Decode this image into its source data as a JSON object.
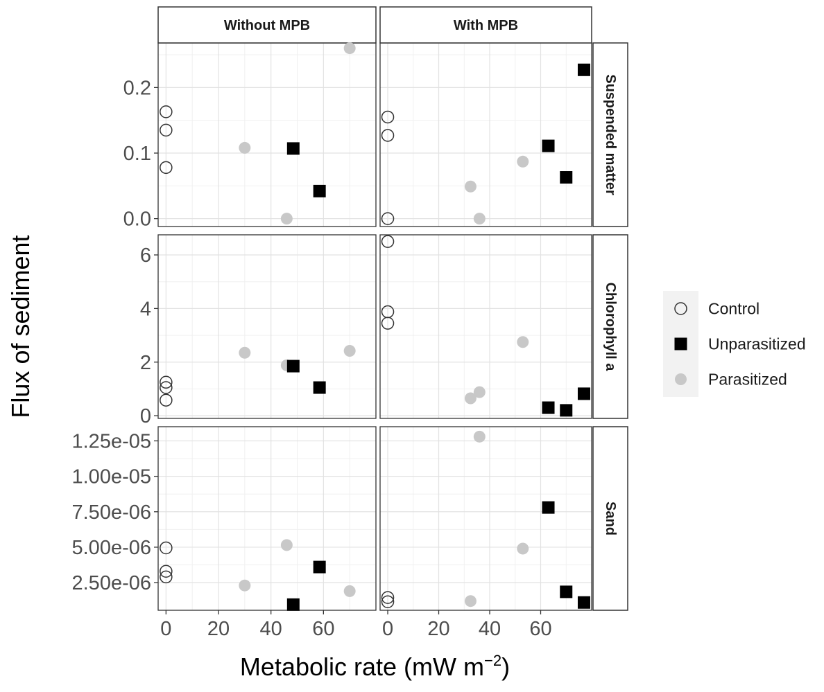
{
  "chart_data": {
    "type": "scatter",
    "xlabel": "Metabolic rate (mW m",
    "xlabel_superscript": "−2",
    "xlabel_close": ")",
    "ylabel": "Flux of sediment",
    "x_ticks": [
      "0",
      "20",
      "40",
      "60"
    ],
    "x_tick_values": [
      0,
      20,
      40,
      60
    ],
    "xlim": [
      -3,
      80
    ],
    "grid": true,
    "legend_position": "right",
    "columns": [
      "Without MPB",
      "With MPB"
    ],
    "rows": [
      {
        "name": "Suspended matter",
        "ylim": [
          -0.012,
          0.268
        ],
        "y_tick_values": [
          0,
          0.1,
          0.2
        ],
        "y_ticks": [
          "0.0",
          "0.1",
          "0.2"
        ]
      },
      {
        "name": "Chlorophyll a",
        "ylim": [
          -0.1,
          6.75
        ],
        "y_tick_values": [
          0,
          2,
          4,
          6
        ],
        "y_ticks": [
          "0",
          "2",
          "4",
          "6"
        ]
      },
      {
        "name": "Sand",
        "ylim": [
          5.5e-07,
          1.35e-05
        ],
        "y_tick_values": [
          2.5e-06,
          5e-06,
          7.5e-06,
          1e-05,
          1.25e-05
        ],
        "y_ticks": [
          "2.50e-06",
          "5.00e-06",
          "7.50e-06",
          "1.00e-05",
          "1.25e-05"
        ]
      }
    ],
    "series": [
      {
        "name": "Control",
        "marker": "open-circle",
        "color": "#333333"
      },
      {
        "name": "Unparasitized",
        "marker": "filled-square",
        "color": "#000000"
      },
      {
        "name": "Parasitized",
        "marker": "filled-circle",
        "color": "#c8c8c8"
      }
    ],
    "panels": [
      {
        "row": 0,
        "col": 0,
        "points": {
          "Control": [
            [
              0,
              0.163
            ],
            [
              0,
              0.135
            ],
            [
              0,
              0.078
            ]
          ],
          "Unparasitized": [
            [
              48.5,
              0.107
            ],
            [
              58.5,
              0.042
            ]
          ],
          "Parasitized": [
            [
              30,
              0.108
            ],
            [
              46,
              0.0
            ],
            [
              70,
              0.26
            ]
          ]
        }
      },
      {
        "row": 0,
        "col": 1,
        "points": {
          "Control": [
            [
              0,
              0.155
            ],
            [
              0,
              0.127
            ],
            [
              0,
              0.0
            ]
          ],
          "Unparasitized": [
            [
              63,
              0.111
            ],
            [
              70,
              0.063
            ],
            [
              77,
              0.227
            ]
          ],
          "Parasitized": [
            [
              32.5,
              0.049
            ],
            [
              36,
              0.0
            ],
            [
              53,
              0.087
            ]
          ]
        }
      },
      {
        "row": 1,
        "col": 0,
        "points": {
          "Control": [
            [
              0,
              1.25
            ],
            [
              0,
              1.05
            ],
            [
              0,
              0.58
            ]
          ],
          "Unparasitized": [
            [
              48.5,
              1.85
            ],
            [
              58.5,
              1.05
            ]
          ],
          "Parasitized": [
            [
              30,
              2.35
            ],
            [
              46,
              1.88
            ],
            [
              70,
              2.42
            ]
          ]
        }
      },
      {
        "row": 1,
        "col": 1,
        "points": {
          "Control": [
            [
              0,
              6.5
            ],
            [
              0,
              3.88
            ],
            [
              0,
              3.45
            ]
          ],
          "Unparasitized": [
            [
              63,
              0.3
            ],
            [
              70,
              0.2
            ],
            [
              77,
              0.82
            ]
          ],
          "Parasitized": [
            [
              32.5,
              0.65
            ],
            [
              36,
              0.88
            ],
            [
              53,
              2.75
            ]
          ]
        }
      },
      {
        "row": 2,
        "col": 0,
        "points": {
          "Control": [
            [
              0,
              4.95e-06
            ],
            [
              0,
              3.3e-06
            ],
            [
              0,
              2.9e-06
            ]
          ],
          "Unparasitized": [
            [
              48.5,
              9.5e-07
            ],
            [
              58.5,
              3.6e-06
            ]
          ],
          "Parasitized": [
            [
              30,
              2.3e-06
            ],
            [
              46,
              5.15e-06
            ],
            [
              70,
              1.9e-06
            ]
          ]
        }
      },
      {
        "row": 2,
        "col": 1,
        "points": {
          "Control": [
            [
              0,
              1.45e-06
            ],
            [
              0,
              1.15e-06
            ]
          ],
          "Unparasitized": [
            [
              63,
              7.8e-06
            ],
            [
              70,
              1.85e-06
            ],
            [
              77,
              1.1e-06
            ]
          ],
          "Parasitized": [
            [
              32.5,
              1.2e-06
            ],
            [
              36,
              1.28e-05
            ],
            [
              53,
              4.9e-06
            ]
          ]
        }
      }
    ]
  }
}
